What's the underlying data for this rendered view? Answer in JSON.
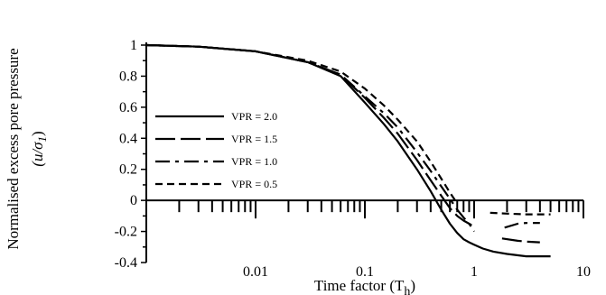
{
  "chart_data": {
    "type": "line",
    "title": "",
    "xlabel": "Time factor (T",
    "xlabel_sub": "h",
    "xlabel_close": ")",
    "ylabel": "Normalised excess pore pressure",
    "ylabel2": "(u/σ",
    "ylabel2_sub": "1",
    "ylabel2_close": ")",
    "x_scale": "log",
    "xlim": [
      0.001,
      10
    ],
    "ylim": [
      -0.4,
      1.0
    ],
    "x_ticks": [
      {
        "value": 0.01,
        "label": "0.01"
      },
      {
        "value": 0.1,
        "label": "0.1"
      },
      {
        "value": 1,
        "label": "1"
      },
      {
        "value": 10,
        "label": "10"
      }
    ],
    "y_ticks": [
      {
        "value": 1.0,
        "label": "1"
      },
      {
        "value": 0.8,
        "label": "0.8"
      },
      {
        "value": 0.6,
        "label": "0.6"
      },
      {
        "value": 0.4,
        "label": "0.4"
      },
      {
        "value": 0.2,
        "label": "0.2"
      },
      {
        "value": 0.0,
        "label": "0"
      },
      {
        "value": -0.2,
        "label": "-0.2"
      },
      {
        "value": -0.4,
        "label": "-0.4"
      }
    ],
    "legend_position": "left",
    "series": [
      {
        "name": "VPR = 2.0",
        "dash": "solid",
        "segments": [
          {
            "x": [
              0.001,
              0.003,
              0.01,
              0.03,
              0.06,
              0.1,
              0.15,
              0.2,
              0.3,
              0.4,
              0.5,
              0.6,
              0.7,
              0.8,
              0.9,
              1.0,
              1.2,
              1.5,
              2.0,
              3.0,
              5.0
            ],
            "y": [
              1.0,
              0.99,
              0.96,
              0.89,
              0.8,
              0.63,
              0.49,
              0.38,
              0.2,
              0.06,
              -0.06,
              -0.15,
              -0.21,
              -0.25,
              -0.27,
              -0.285,
              -0.31,
              -0.33,
              -0.345,
              -0.36,
              -0.36
            ]
          }
        ]
      },
      {
        "name": "VPR = 1.5",
        "dash": "long-dash",
        "segments": [
          {
            "x": [
              0.001,
              0.003,
              0.01,
              0.03,
              0.06,
              0.1,
              0.15,
              0.2,
              0.3,
              0.4,
              0.5,
              0.6,
              0.7,
              0.8,
              0.9,
              0.95
            ],
            "y": [
              1.0,
              0.99,
              0.96,
              0.89,
              0.81,
              0.66,
              0.53,
              0.43,
              0.26,
              0.13,
              0.03,
              -0.05,
              -0.1,
              -0.13,
              -0.15,
              -0.16
            ]
          },
          {
            "x": [
              1.8,
              2.5,
              3.0,
              4.0
            ],
            "y": [
              -0.245,
              -0.26,
              -0.265,
              -0.27
            ]
          }
        ]
      },
      {
        "name": "VPR = 1.0",
        "dash": "dash-dot",
        "segments": [
          {
            "x": [
              0.001,
              0.003,
              0.01,
              0.03,
              0.06,
              0.1,
              0.15,
              0.2,
              0.3,
              0.4,
              0.5,
              0.6,
              0.7,
              0.8,
              0.9,
              1.0
            ],
            "y": [
              1.0,
              0.99,
              0.96,
              0.89,
              0.81,
              0.67,
              0.56,
              0.47,
              0.31,
              0.19,
              0.09,
              0.01,
              -0.06,
              -0.11,
              -0.15,
              -0.2
            ]
          },
          {
            "x": [
              1.9,
              2.5,
              3.0,
              4.0
            ],
            "y": [
              -0.175,
              -0.15,
              -0.145,
              -0.145
            ]
          }
        ]
      },
      {
        "name": "VPR = 0.5",
        "dash": "short-dash",
        "segments": [
          {
            "x": [
              0.001,
              0.003,
              0.01,
              0.03,
              0.06,
              0.1,
              0.15,
              0.2,
              0.3,
              0.4,
              0.5,
              0.6,
              0.7
            ],
            "y": [
              1.0,
              0.99,
              0.96,
              0.9,
              0.83,
              0.72,
              0.61,
              0.52,
              0.38,
              0.25,
              0.14,
              0.05,
              -0.02
            ]
          },
          {
            "x": [
              1.4,
              2.0,
              3.0,
              4.0,
              5.0
            ],
            "y": [
              -0.08,
              -0.085,
              -0.09,
              -0.09,
              -0.09
            ]
          }
        ]
      }
    ]
  }
}
